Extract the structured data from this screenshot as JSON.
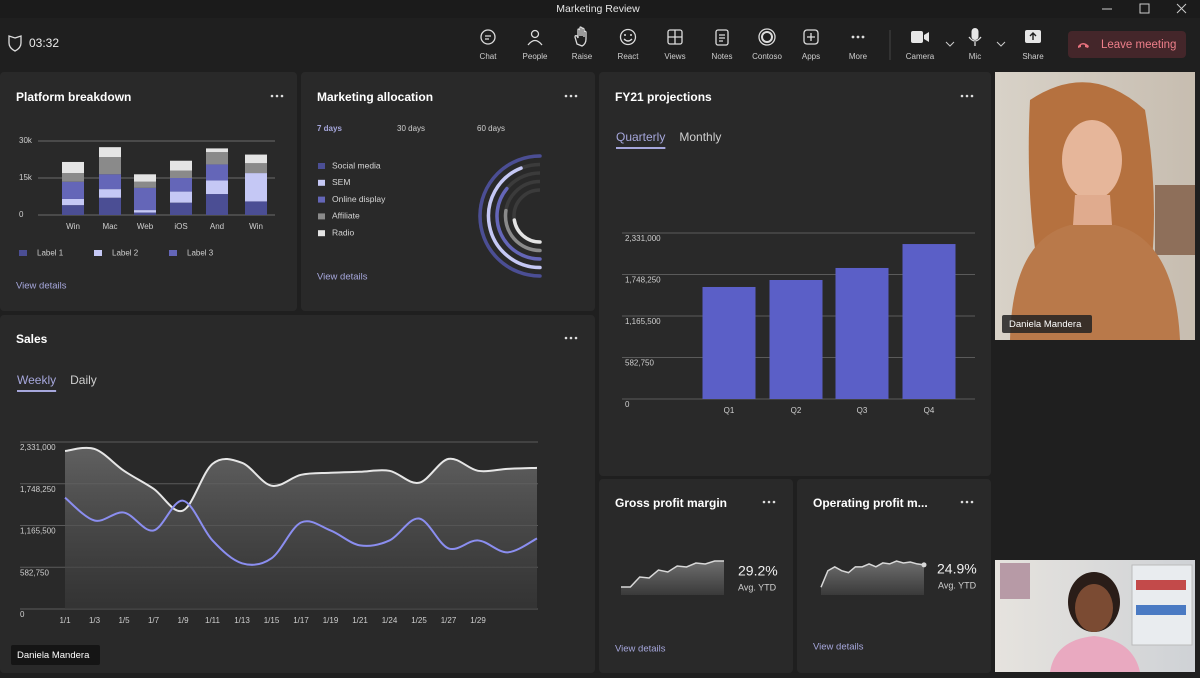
{
  "window": {
    "title": "Marketing Review"
  },
  "meeting": {
    "timer": "03:32",
    "toolbar": [
      "Chat",
      "People",
      "Raise",
      "React",
      "Views",
      "Notes",
      "Contoso",
      "Apps",
      "More",
      "Camera",
      "Mic",
      "Share"
    ],
    "leave": "Leave meeting"
  },
  "presenter": "Daniela Mandera",
  "participants": [
    {
      "name": "Daniela Mandera"
    }
  ],
  "panels": {
    "platform": {
      "type": "bar",
      "stacked": true,
      "title": "Platform breakdown",
      "categories": [
        "Win",
        "Mac",
        "Web",
        "iOS",
        "And",
        "Win"
      ],
      "series": [
        {
          "name": "Label 1",
          "color": "#4b4e94",
          "values": [
            4000,
            7000,
            1000,
            5000,
            8500,
            5500
          ]
        },
        {
          "name": "Label 2",
          "color": "#c5c8f5",
          "values": [
            2500,
            3500,
            1000,
            4500,
            5500,
            11500
          ]
        },
        {
          "name": "Label 3",
          "color": "#6466b8",
          "values": [
            7000,
            6000,
            9000,
            5500,
            6500,
            0
          ]
        },
        {
          "color": "#8a8a8a",
          "values": [
            3500,
            7000,
            2500,
            3000,
            5000,
            4000
          ]
        },
        {
          "color": "#e4e4e4",
          "values": [
            4500,
            4000,
            3000,
            4000,
            1500,
            3500
          ]
        }
      ],
      "ylim": [
        0,
        30000
      ],
      "yticks": [
        0,
        {
          "value": 15000,
          "label": "15k"
        },
        {
          "value": 30000,
          "label": "30k"
        }
      ],
      "grid": true,
      "link": "View details"
    },
    "allocation": {
      "type": "radial",
      "title": "Marketing allocation",
      "tabs": [
        "7 days",
        "30 days",
        "60 days"
      ],
      "active_tab": 0,
      "series": [
        {
          "name": "Social media",
          "color": "#4b4e94",
          "value": 100
        },
        {
          "name": "SEM",
          "color": "#c5c8f5",
          "value": 88
        },
        {
          "name": "Online display",
          "color": "#6466b8",
          "value": 72
        },
        {
          "name": "Affiliate",
          "color": "#8a8a8a",
          "value": 55
        },
        {
          "name": "Radio",
          "color": "#e4e4e4",
          "value": 45
        }
      ],
      "link": "View details"
    },
    "fy21": {
      "type": "bar",
      "title": "FY21 projections",
      "tabs": [
        "Quarterly",
        "Monthly"
      ],
      "active_tab": 0,
      "categories": [
        "Q1",
        "Q2",
        "Q3",
        "Q4"
      ],
      "values": [
        1573000,
        1671000,
        1840000,
        2176000
      ],
      "color": "#5b5fc7",
      "ylim": [
        0,
        2331000
      ],
      "yticks": [
        0,
        {
          "value": 582750,
          "label": "582,750"
        },
        {
          "value": 1165500,
          "label": "1,165,500"
        },
        {
          "value": 1748250,
          "label": "1,748,250"
        },
        {
          "value": 2331000,
          "label": "2,331,000"
        }
      ],
      "grid": true
    },
    "sales": {
      "type": "line",
      "title": "Sales",
      "tabs": [
        "Weekly",
        "Daily"
      ],
      "active_tab": 0,
      "categories": [
        "1/1",
        "1/3",
        "1/5",
        "1/7",
        "1/9",
        "1/11",
        "1/13",
        "1/15",
        "1/17",
        "1/19",
        "1/21",
        "1/24",
        "1/25",
        "1/27",
        "1/29",
        null,
        null
      ],
      "series": [
        {
          "color": "#e6e6e6",
          "values": [
            2206000,
            2234000,
            1929000,
            1679000,
            1374000,
            2026000,
            2040000,
            1721000,
            1873000,
            1901000,
            1915000,
            1929000,
            1762000,
            2095000,
            1929000,
            1956000,
            1970000
          ]
        },
        {
          "color": "#8b8ef0",
          "values": [
            1554000,
            1235000,
            1346000,
            1096000,
            1512000,
            957000,
            638000,
            708000,
            1207000,
            1096000,
            888000,
            957000,
            1263000,
            846000,
            957000,
            791000,
            985000
          ]
        }
      ],
      "ylim": [
        0,
        2331000
      ],
      "yticks": [
        0,
        {
          "value": 582750,
          "label": "582,750"
        },
        {
          "value": 1165500,
          "label": "1,165,500"
        },
        {
          "value": 1748250,
          "label": "1,748,250"
        },
        {
          "value": 2331000,
          "label": "2,331,000"
        }
      ],
      "grid": true
    },
    "gross": {
      "type": "sparkline",
      "title": "Gross profit margin",
      "values": [
        8,
        8,
        18,
        17,
        25,
        23,
        29,
        28,
        32,
        31,
        34,
        34
      ],
      "kpi": "29.2%",
      "kpi_caption": "Avg. YTD",
      "link": "View details"
    },
    "operating": {
      "type": "sparkline",
      "title": "Operating profit m...",
      "values": [
        8,
        25,
        29,
        25,
        23,
        29,
        29,
        32,
        29,
        33,
        32,
        35,
        33,
        34,
        32,
        31
      ],
      "kpi": "24.9%",
      "kpi_caption": "Avg. YTD",
      "link": "View details"
    }
  }
}
